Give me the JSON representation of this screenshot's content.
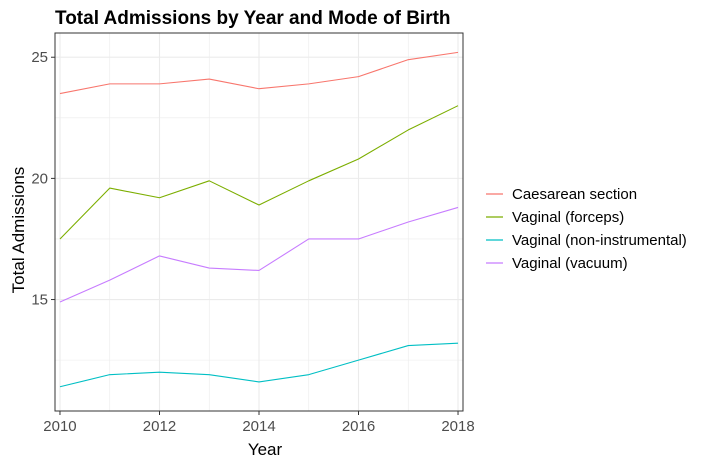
{
  "chart_data": {
    "type": "line",
    "title": "Total Admissions by Year and  Mode of Birth",
    "xlabel": "Year",
    "ylabel": "Total Admissions",
    "x": [
      2010,
      2011,
      2012,
      2013,
      2014,
      2015,
      2016,
      2017,
      2018
    ],
    "xlim": [
      2009.9,
      2018.1
    ],
    "ylim": [
      10.4,
      26.0
    ],
    "xticks": [
      2010,
      2012,
      2014,
      2016,
      2018
    ],
    "yticks": [
      15,
      20,
      25
    ],
    "xtick_labels": [
      "2010",
      "2012",
      "2014",
      "2016",
      "2018"
    ],
    "ytick_labels": [
      "15",
      "20",
      "25"
    ],
    "grid": true,
    "legend_position": "right",
    "series": [
      {
        "name": "Caesarean section",
        "color": "#F8766D",
        "values": [
          23.5,
          23.9,
          23.9,
          24.1,
          23.7,
          23.9,
          24.2,
          24.9,
          25.2
        ]
      },
      {
        "name": "Vaginal (forceps)",
        "color": "#7CAE00",
        "values": [
          17.5,
          19.6,
          19.2,
          19.9,
          18.9,
          19.9,
          20.8,
          22.0,
          23.0
        ]
      },
      {
        "name": "Vaginal (non-instrumental)",
        "color": "#00BFC4",
        "values": [
          11.4,
          11.9,
          12.0,
          11.9,
          11.6,
          11.9,
          12.5,
          13.1,
          13.2
        ]
      },
      {
        "name": "Vaginal (vacuum)",
        "color": "#C77CFF",
        "values": [
          14.9,
          15.8,
          16.8,
          16.3,
          16.2,
          17.5,
          17.5,
          18.2,
          18.8
        ]
      }
    ]
  }
}
